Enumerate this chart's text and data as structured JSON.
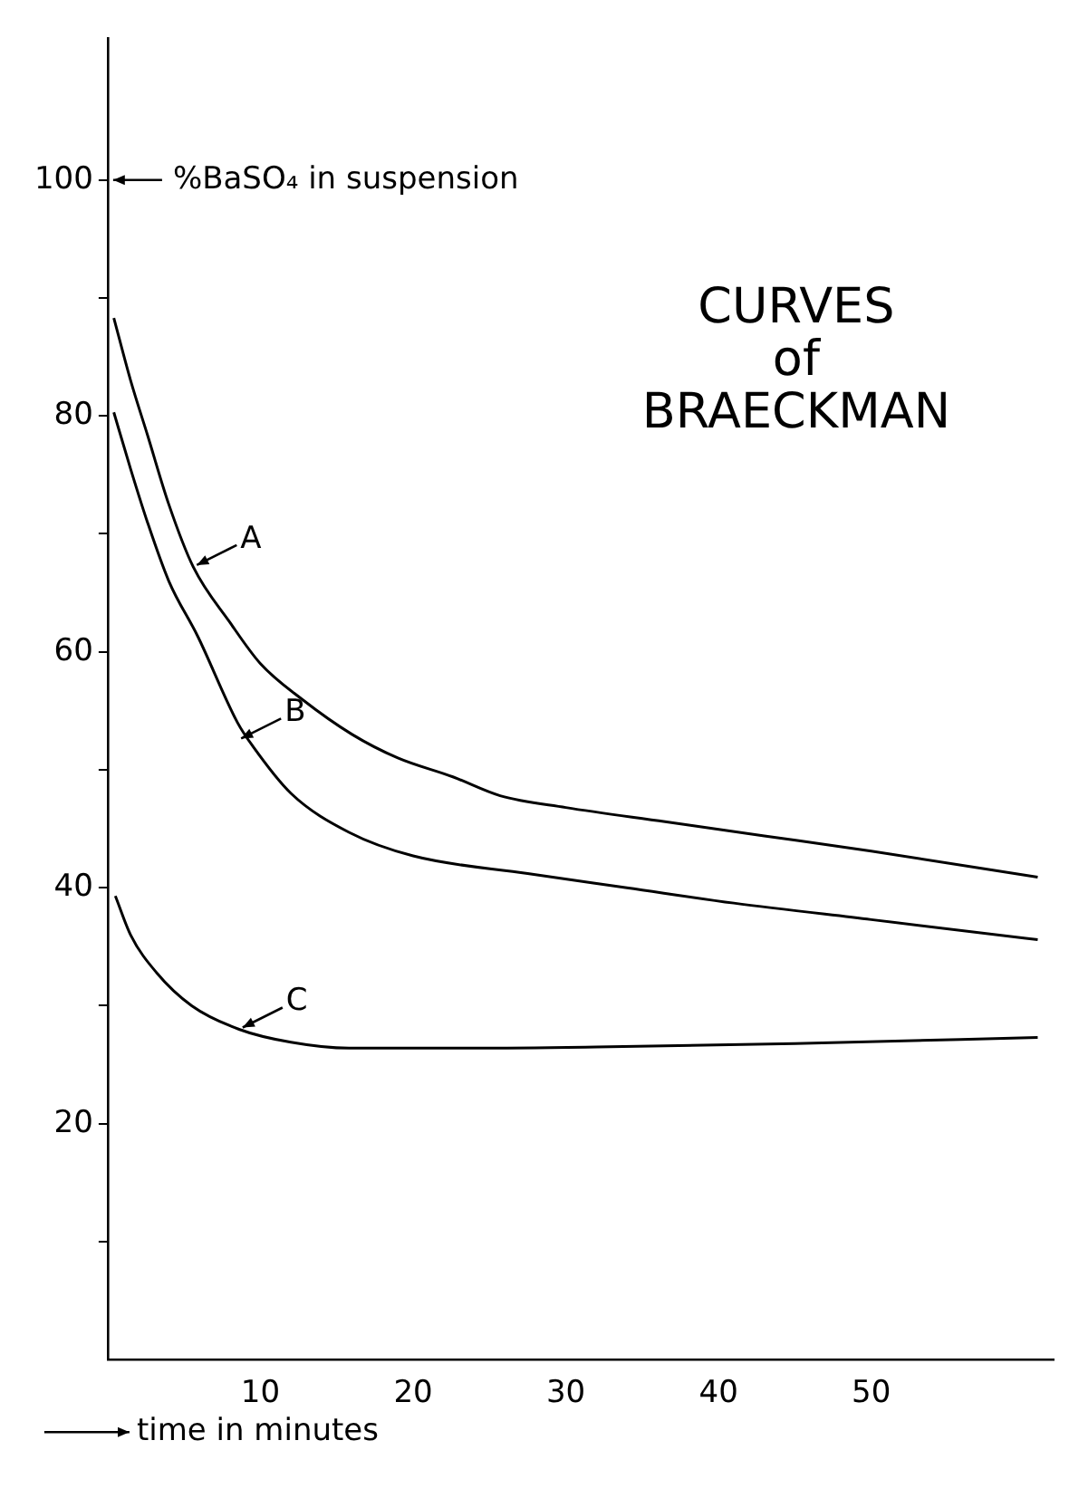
{
  "chart_data": {
    "type": "line",
    "title": "CURVES of BRAECKMAN",
    "xlabel": "time in minutes",
    "ylabel": "%BaSO₄ in suspension",
    "xlim": [
      0,
      62
    ],
    "ylim": [
      0,
      112
    ],
    "xticks": [
      10,
      20,
      30,
      40,
      50
    ],
    "yticks": [
      {
        "value": 10,
        "label": null
      },
      20,
      {
        "value": 30,
        "label": null
      },
      40,
      {
        "value": 50,
        "label": null
      },
      60,
      {
        "value": 70,
        "label": null
      },
      80,
      {
        "value": 90,
        "label": null
      },
      100
    ],
    "grid": false,
    "legend": false,
    "marker": "none",
    "line_style": "solid",
    "series": [
      {
        "color": "#000000",
        "x": [
          0.4,
          1.5,
          2.6,
          4,
          5.6,
          8,
          10,
          12.7,
          16,
          19,
          22.6,
          25.7,
          30,
          36.5,
          43,
          50,
          60.9
        ],
        "values": [
          88.3,
          83,
          78.4,
          72.5,
          67.2,
          62.5,
          59,
          56,
          53,
          51,
          49.4,
          47.8,
          46.8,
          45.6,
          44.4,
          43.1,
          40.9
        ]
      },
      {
        "color": "#000000",
        "x": [
          0.4,
          1.5,
          2.6,
          4,
          5.9,
          8.5,
          9.5,
          12,
          15.8,
          20,
          27.5,
          34,
          41,
          50,
          60.9
        ],
        "values": [
          80.3,
          75.5,
          71,
          66,
          61.3,
          54,
          52,
          48,
          44.7,
          42.7,
          41.2,
          40,
          38.7,
          37.3,
          35.6
        ]
      },
      {
        "color": "#000000",
        "x": [
          0.5,
          1.5,
          3.2,
          5.5,
          8.6,
          12,
          15.8,
          24,
          32,
          45,
          60.9
        ],
        "values": [
          39.3,
          36,
          32.8,
          30,
          28,
          26.9,
          26.4,
          26.4,
          26.5,
          26.8,
          27.3
        ]
      }
    ],
    "annotations": [
      {
        "text": "A",
        "x": 5.6,
        "y": 67.2
      },
      {
        "text": "B",
        "x": 8.5,
        "y": 52.5
      },
      {
        "text": "C",
        "x": 8.6,
        "y": 28
      }
    ]
  }
}
